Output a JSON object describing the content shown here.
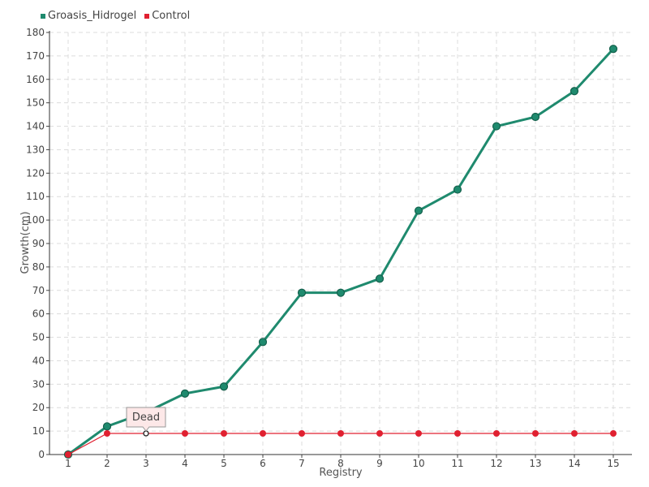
{
  "chart_data": {
    "type": "line",
    "xlabel": "Registry",
    "ylabel": "Growth(cm)",
    "categories": [
      "1",
      "2",
      "3",
      "4",
      "5",
      "6",
      "7",
      "8",
      "9",
      "10",
      "11",
      "12",
      "13",
      "14",
      "15"
    ],
    "ylim": [
      0,
      180
    ],
    "y_ticks": [
      0,
      10,
      20,
      30,
      40,
      50,
      60,
      70,
      80,
      90,
      100,
      110,
      120,
      130,
      140,
      150,
      160,
      170,
      180
    ],
    "grid": true,
    "legend_position": "top-left",
    "series": [
      {
        "name": "Groasis_Hidrogel",
        "color": "#1f8a6e",
        "values": [
          0,
          12,
          18,
          26,
          29,
          48,
          69,
          69,
          75,
          104,
          113,
          140,
          144,
          155,
          173
        ]
      },
      {
        "name": "Control",
        "color": "#e02030",
        "values": [
          0,
          9,
          9,
          9,
          9,
          9,
          9,
          9,
          9,
          9,
          9,
          9,
          9,
          9,
          9
        ]
      }
    ],
    "annotation": {
      "text": "Dead",
      "series": 1,
      "index": 2
    }
  }
}
